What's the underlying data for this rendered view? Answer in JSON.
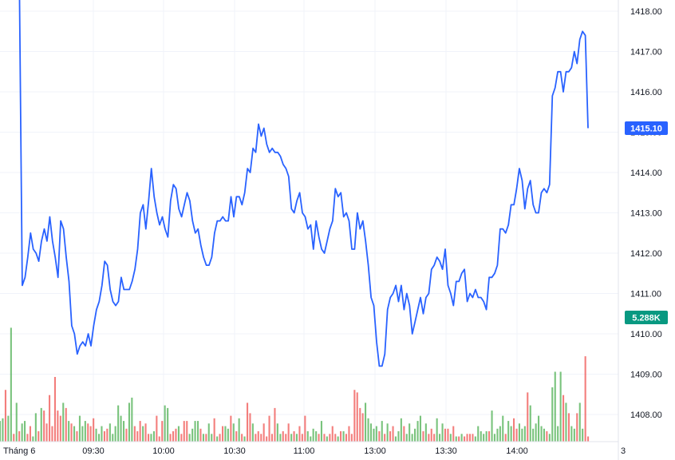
{
  "chart_data": {
    "type": "line",
    "price_axis": {
      "ylim": [
        1407.6,
        1418.3
      ],
      "ticks": [
        "1418.00",
        "1417.00",
        "1416.00",
        "1415.00",
        "1414.00",
        "1413.00",
        "1412.00",
        "1411.00",
        "1410.00",
        "1409.00",
        "1408.00"
      ],
      "tick_values": [
        1418,
        1417,
        1416,
        1415,
        1414,
        1413,
        1412,
        1411,
        1410,
        1409,
        1408
      ]
    },
    "time_axis": {
      "labels": [
        "Tháng 6",
        "09:30",
        "10:00",
        "10:30",
        "11:00",
        "13:00",
        "13:30",
        "14:00",
        "3"
      ]
    },
    "last_price_label": "1415.10",
    "volume_label": "5.288K",
    "colors": {
      "line": "#2962ff",
      "price_badge": "#2962ff",
      "volume_badge": "#089981",
      "volume_up": "#4caf50",
      "volume_down": "#ef5350",
      "grid": "#f0f3fa"
    },
    "series": [
      {
        "values": [
          1418.5,
          1411.2,
          1411.4,
          1411.9,
          1412.5,
          1412.1,
          1412.0,
          1411.8,
          1412.3,
          1412.6,
          1412.3,
          1412.9,
          1412.3,
          1411.9,
          1411.4,
          1412.8,
          1412.6,
          1411.9,
          1411.3,
          1410.2,
          1410.0,
          1409.5,
          1409.7,
          1409.8,
          1409.7,
          1410.0,
          1409.7,
          1410.2,
          1410.6,
          1410.8,
          1411.2,
          1411.8,
          1411.7,
          1411.1,
          1410.8,
          1410.7,
          1410.8,
          1411.4,
          1411.1,
          1411.1,
          1411.1,
          1411.3,
          1411.6,
          1412.1,
          1413.0,
          1413.2,
          1412.6,
          1413.3,
          1414.1,
          1413.4,
          1413.0,
          1412.7,
          1412.9,
          1412.6,
          1412.4,
          1413.3,
          1413.7,
          1413.6,
          1413.1,
          1412.9,
          1413.2,
          1413.5,
          1413.3,
          1412.8,
          1412.5,
          1412.6,
          1412.2,
          1411.9,
          1411.7,
          1411.7,
          1411.9,
          1412.5,
          1412.8,
          1412.8,
          1412.9,
          1412.8,
          1412.8,
          1413.4,
          1412.9,
          1413.4,
          1413.4,
          1413.2,
          1413.5,
          1414.1,
          1414.0,
          1414.6,
          1414.5,
          1415.2,
          1414.9,
          1415.1,
          1414.7,
          1414.5,
          1414.6,
          1414.5,
          1414.5,
          1414.4,
          1414.2,
          1414.1,
          1413.9,
          1413.1,
          1413.0,
          1413.3,
          1413.5,
          1413.0,
          1412.9,
          1412.6,
          1412.7,
          1412.1,
          1412.8,
          1412.4,
          1412.1,
          1412.0,
          1412.3,
          1412.6,
          1412.8,
          1413.6,
          1413.4,
          1413.5,
          1412.9,
          1413.0,
          1412.8,
          1412.1,
          1412.1,
          1413.0,
          1412.6,
          1412.8,
          1412.3,
          1411.7,
          1410.9,
          1410.7,
          1409.8,
          1409.2,
          1409.2,
          1409.5,
          1410.6,
          1410.9,
          1411.0,
          1411.2,
          1410.8,
          1411.2,
          1410.6,
          1411.0,
          1410.7,
          1410.0,
          1410.3,
          1410.6,
          1410.9,
          1410.5,
          1410.9,
          1411.0,
          1411.6,
          1411.7,
          1411.9,
          1411.8,
          1411.6,
          1412.1,
          1411.2,
          1411.0,
          1410.7,
          1411.3,
          1411.3,
          1411.5,
          1411.6,
          1410.8,
          1411.0,
          1410.9,
          1411.1,
          1410.9,
          1410.9,
          1410.8,
          1410.6,
          1411.4,
          1411.4,
          1411.5,
          1411.7,
          1412.6,
          1412.6,
          1412.5,
          1412.7,
          1413.2,
          1413.2,
          1413.6,
          1414.1,
          1413.8,
          1413.1,
          1413.6,
          1413.8,
          1413.2,
          1413.0,
          1413.0,
          1413.5,
          1413.6,
          1413.5,
          1413.7,
          1415.9,
          1416.1,
          1416.5,
          1416.5,
          1416.0,
          1416.5,
          1416.5,
          1416.6,
          1417.0,
          1416.7,
          1417.3,
          1417.5,
          1417.4,
          1415.1
        ]
      }
    ],
    "volume": {
      "heights": [
        0.16,
        0.18,
        0.4,
        0.2,
        0.88,
        0.06,
        0.3,
        0.08,
        0.14,
        0.16,
        0.06,
        0.12,
        0.04,
        0.22,
        0.08,
        0.26,
        0.24,
        0.14,
        0.36,
        0.12,
        0.5,
        0.24,
        0.2,
        0.3,
        0.26,
        0.16,
        0.14,
        0.12,
        0.08,
        0.2,
        0.12,
        0.16,
        0.14,
        0.12,
        0.18,
        0.1,
        0.06,
        0.12,
        0.08,
        0.1,
        0.14,
        0.06,
        0.12,
        0.28,
        0.2,
        0.16,
        0.1,
        0.3,
        0.34,
        0.12,
        0.08,
        0.16,
        0.12,
        0.14,
        0.06,
        0.06,
        0.08,
        0.2,
        0.04,
        0.16,
        0.28,
        0.26,
        0.06,
        0.08,
        0.1,
        0.12,
        0.06,
        0.16,
        0.16,
        0.06,
        0.1,
        0.16,
        0.16,
        0.1,
        0.06,
        0.06,
        0.14,
        0.06,
        0.18,
        0.04,
        0.06,
        0.12,
        0.12,
        0.1,
        0.2,
        0.14,
        0.08,
        0.18,
        0.06,
        0.04,
        0.3,
        0.22,
        0.14,
        0.06,
        0.08,
        0.06,
        0.14,
        0.04,
        0.2,
        0.06,
        0.26,
        0.14,
        0.06,
        0.08,
        0.06,
        0.14,
        0.06,
        0.08,
        0.06,
        0.12,
        0.06,
        0.2,
        0.08,
        0.04,
        0.1,
        0.08,
        0.06,
        0.16,
        0.06,
        0.04,
        0.06,
        0.12,
        0.06,
        0.04,
        0.08,
        0.08,
        0.06,
        0.12,
        0.06,
        0.4,
        0.38,
        0.26,
        0.22,
        0.3,
        0.18,
        0.14,
        0.1,
        0.12,
        0.08,
        0.16,
        0.06,
        0.14,
        0.08,
        0.12,
        0.04,
        0.08,
        0.18,
        0.12,
        0.06,
        0.14,
        0.06,
        0.1,
        0.16,
        0.2,
        0.08,
        0.14,
        0.06,
        0.1,
        0.06,
        0.18,
        0.06,
        0.14,
        0.1,
        0.1,
        0.06,
        0.12,
        0.04,
        0.04,
        0.06,
        0.04,
        0.06,
        0.06,
        0.06,
        0.04,
        0.12,
        0.08,
        0.06,
        0.08,
        0.08,
        0.24,
        0.06,
        0.1,
        0.12,
        0.2,
        0.06,
        0.16,
        0.12,
        0.18,
        0.1,
        0.14,
        0.1,
        0.12,
        0.38,
        0.28,
        0.1,
        0.14,
        0.2,
        0.12,
        0.1,
        0.08,
        0.06,
        0.42,
        0.54,
        0.12,
        0.54,
        0.36,
        0.3,
        0.22,
        0.12,
        0.1,
        0.22,
        0.3,
        0.1,
        0.66,
        0.04
      ],
      "up": [
        1,
        1,
        0,
        1,
        1,
        0,
        1,
        0,
        1,
        1,
        0,
        0,
        1,
        1,
        0,
        1,
        0,
        0,
        0,
        0,
        0,
        0,
        0,
        1,
        0,
        1,
        0,
        1,
        0,
        1,
        1,
        1,
        0,
        0,
        0,
        1,
        1,
        1,
        0,
        0,
        1,
        1,
        1,
        1,
        1,
        1,
        0,
        1,
        1,
        0,
        0,
        0,
        1,
        0,
        0,
        1,
        1,
        0,
        0,
        0,
        1,
        1,
        0,
        0,
        0,
        1,
        0,
        0,
        0,
        1,
        1,
        1,
        1,
        0,
        1,
        0,
        1,
        1,
        0,
        1,
        0,
        0,
        1,
        1,
        0,
        1,
        0,
        1,
        0,
        1,
        0,
        0,
        1,
        0,
        0,
        0,
        0,
        0,
        0,
        0,
        0,
        1,
        1,
        0,
        0,
        0,
        1,
        0,
        1,
        0,
        0,
        0,
        1,
        1,
        1,
        1,
        0,
        1,
        0,
        1,
        0,
        0,
        0,
        1,
        0,
        1,
        0,
        0,
        0,
        0,
        0,
        0,
        0,
        1,
        1,
        1,
        1,
        1,
        0,
        1,
        0,
        1,
        0,
        0,
        1,
        1,
        1,
        0,
        1,
        1,
        1,
        1,
        1,
        1,
        0,
        1,
        0,
        0,
        0,
        1,
        1,
        1,
        0,
        0,
        1,
        0,
        1,
        0,
        1,
        0,
        0,
        0,
        0,
        1,
        1,
        1,
        1,
        1,
        0,
        1,
        1,
        1,
        1,
        1,
        0,
        1,
        1,
        0,
        0,
        1,
        1,
        1,
        0,
        1,
        1,
        1,
        1,
        1,
        1,
        0,
        1,
        1,
        1,
        1,
        1,
        0,
        1,
        0,
        1,
        1,
        0,
        1,
        1,
        0,
        0
      ]
    }
  }
}
